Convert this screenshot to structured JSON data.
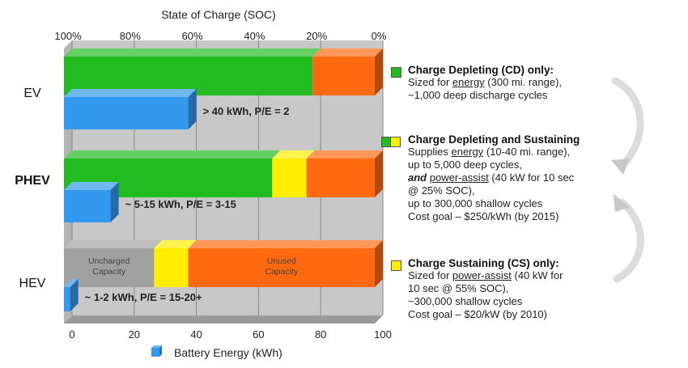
{
  "chart_data": {
    "type": "bar",
    "title": "",
    "top_axis": {
      "label": "State of Charge (SOC)",
      "ticks": [
        "100%",
        "80%",
        "60%",
        "40%",
        "20%",
        "0%"
      ],
      "range": [
        100,
        0
      ]
    },
    "bottom_axis": {
      "label": "Battery Energy (kWh)",
      "ticks": [
        "0",
        "20",
        "40",
        "60",
        "80",
        "100"
      ],
      "range": [
        0,
        100
      ]
    },
    "grid": true,
    "categories": [
      "EV",
      "PHEV",
      "HEV"
    ],
    "soc_bars": [
      {
        "category": "EV",
        "segments": [
          {
            "color": "#22bb22",
            "soc_from": 100,
            "soc_to": 20
          },
          {
            "color": "#ff6a10",
            "soc_from": 20,
            "soc_to": 0
          }
        ]
      },
      {
        "category": "PHEV",
        "segments": [
          {
            "color": "#22bb22",
            "soc_from": 100,
            "soc_to": 33
          },
          {
            "color": "#ffee00",
            "soc_from": 33,
            "soc_to": 22
          },
          {
            "color": "#ff6a10",
            "soc_from": 22,
            "soc_to": 0
          }
        ]
      },
      {
        "category": "HEV",
        "segments": [
          {
            "color": "#a0a0a0",
            "soc_from": 100,
            "soc_to": 71,
            "label_lines": [
              "Uncharged",
              "Capacity"
            ]
          },
          {
            "color": "#ffee00",
            "soc_from": 71,
            "soc_to": 60
          },
          {
            "color": "#ff6a10",
            "soc_from": 60,
            "soc_to": 0,
            "label_lines": [
              "Unused",
              "Capacity"
            ]
          }
        ]
      }
    ],
    "energy_bars": [
      {
        "category": "EV",
        "kwh": 40,
        "label": "> 40 kWh, P/E = 2"
      },
      {
        "category": "PHEV",
        "kwh": 15,
        "label": "~ 5-15 kWh, P/E = 3-15"
      },
      {
        "category": "HEV",
        "kwh": 2,
        "label": "~ 1-2 kWh, P/E = 15-20+"
      }
    ],
    "colors": {
      "green": "#22bb22",
      "orange": "#ff6a10",
      "yellow": "#ffee00",
      "gray": "#a0a0a0",
      "blue": "#3399ee",
      "panel": "#c8c8c8"
    }
  },
  "legend": [
    {
      "swatch": [
        "#22bb22"
      ],
      "title": "Charge Depleting (CD) only:",
      "lines": [
        {
          "pre": "Sized for ",
          "u": "energy",
          "post": " (300 mi. range),"
        },
        {
          "pre": "~1,000 deep discharge cycles"
        }
      ]
    },
    {
      "swatch": [
        "#22bb22",
        "#ffee00"
      ],
      "title": "Charge Depleting and Sustaining",
      "lines": [
        {
          "pre": "Supplies ",
          "u": "energy",
          "post": " (10-40 mi. range),"
        },
        {
          "pre": "up to 5,000 deep cycles,"
        },
        {
          "b": "and ",
          "u": "power-assist",
          "post": " (40 kW  for 10 sec"
        },
        {
          "pre": "@ 25% SOC),"
        },
        {
          "pre": "up to 300,000 shallow cycles"
        },
        {
          "pre": "Cost goal – $250/kWh (by 2015)"
        }
      ]
    },
    {
      "swatch": [
        "#ffee00"
      ],
      "title": "Charge Sustaining (CS) only:",
      "lines": [
        {
          "pre": "Sized for ",
          "u": "power-assist",
          "post": " (40 kW  for"
        },
        {
          "pre": "10 sec @ 55% SOC),"
        },
        {
          "pre": "~300,000 shallow cycles"
        },
        {
          "pre": "Cost goal – $20/kW (by 2010)"
        }
      ]
    }
  ]
}
